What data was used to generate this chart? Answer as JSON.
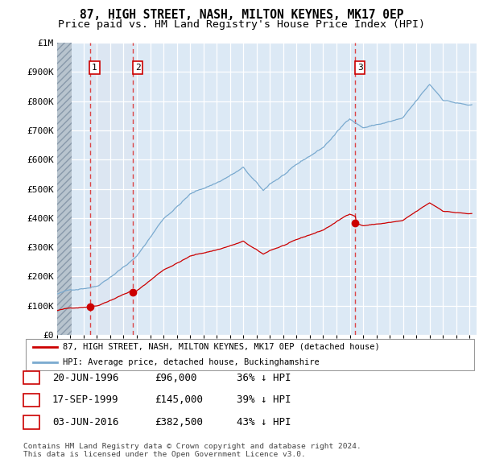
{
  "title": "87, HIGH STREET, NASH, MILTON KEYNES, MK17 0EP",
  "subtitle": "Price paid vs. HM Land Registry's House Price Index (HPI)",
  "title_fontsize": 10.5,
  "subtitle_fontsize": 9.5,
  "bg_color": "#ffffff",
  "plot_bg_color": "#dce9f5",
  "hatch_bg_color": "#c8d4de",
  "shade_between_color": "#d0dff0",
  "grid_color": "#ffffff",
  "red_line_color": "#cc0000",
  "blue_line_color": "#7aaacf",
  "vline_color": "#dd3333",
  "marker_color": "#cc0000",
  "ylim": [
    0,
    1000000
  ],
  "yticks": [
    0,
    100000,
    200000,
    300000,
    400000,
    500000,
    600000,
    700000,
    800000,
    900000,
    1000000
  ],
  "ytick_labels": [
    "£0",
    "£100K",
    "£200K",
    "£300K",
    "£400K",
    "£500K",
    "£600K",
    "£700K",
    "£800K",
    "£900K",
    "£1M"
  ],
  "xlim_start": 1994.0,
  "xlim_end": 2025.5,
  "hatch_end_year": 1995.08,
  "shade_start": 1996.47,
  "shade_end": 1999.71,
  "transactions": [
    {
      "year": 1996.47,
      "price": 96000,
      "label": "1"
    },
    {
      "year": 1999.71,
      "price": 145000,
      "label": "2"
    },
    {
      "year": 2016.42,
      "price": 382500,
      "label": "3"
    }
  ],
  "legend_entry1": "87, HIGH STREET, NASH, MILTON KEYNES, MK17 0EP (detached house)",
  "legend_entry2": "HPI: Average price, detached house, Buckinghamshire",
  "table_rows": [
    {
      "num": "1",
      "date": "20-JUN-1996",
      "price": "£96,000",
      "pct": "36% ↓ HPI"
    },
    {
      "num": "2",
      "date": "17-SEP-1999",
      "price": "£145,000",
      "pct": "39% ↓ HPI"
    },
    {
      "num": "3",
      "date": "03-JUN-2016",
      "price": "£382,500",
      "pct": "43% ↓ HPI"
    }
  ],
  "copyright_text": "Contains HM Land Registry data © Crown copyright and database right 2024.\nThis data is licensed under the Open Government Licence v3.0."
}
